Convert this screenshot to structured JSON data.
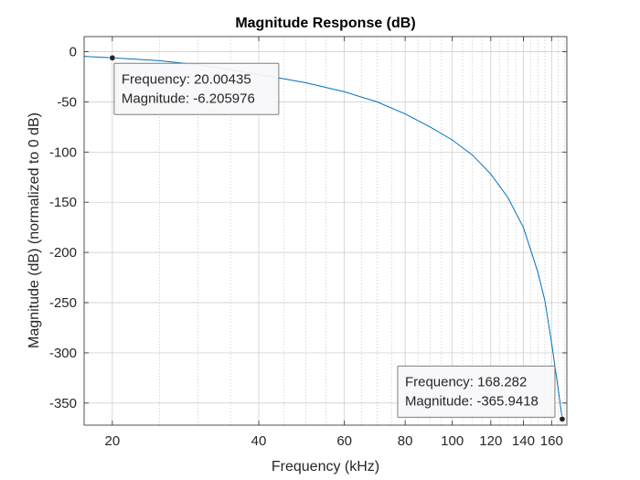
{
  "chart_data": {
    "type": "line",
    "title": "Magnitude Response (dB)",
    "xlabel": "Frequency (kHz)",
    "ylabel": "Magnitude (dB) (normalized to 0 dB)",
    "x_scale": "log",
    "xlim": [
      17.5,
      172
    ],
    "ylim": [
      -372,
      15
    ],
    "x_ticks": [
      20,
      40,
      60,
      80,
      100,
      120,
      140,
      160
    ],
    "x_tick_labels": [
      "20",
      "40",
      "60",
      "80",
      "100",
      "120",
      "140",
      "160"
    ],
    "y_ticks": [
      0,
      -50,
      -100,
      -150,
      -200,
      -250,
      -300,
      -350
    ],
    "y_tick_labels": [
      "0",
      "-50",
      "-100",
      "-150",
      "-200",
      "-250",
      "-300",
      "-350"
    ],
    "grid": true,
    "series": [
      {
        "color": "#0072bd",
        "x": [
          17.5,
          20,
          25,
          30,
          35,
          40,
          45,
          50,
          60,
          70,
          80,
          90,
          100,
          110,
          120,
          130,
          140,
          150,
          155,
          160,
          165,
          168.3
        ],
        "y": [
          -4.7,
          -6.2,
          -9,
          -13,
          -18,
          -23,
          -27,
          -31,
          -40,
          -50,
          -62,
          -75,
          -88,
          -103,
          -122,
          -145,
          -175,
          -220,
          -248,
          -290,
          -335,
          -366
        ]
      }
    ],
    "datatips": [
      {
        "x": 20.00435,
        "y": -6.205976,
        "line1": "Frequency: 20.00435",
        "line2": "Magnitude: -6.205976",
        "placement": "bottom-right"
      },
      {
        "x": 168.282,
        "y": -365.9418,
        "line1": "Frequency: 168.282",
        "line2": "Magnitude: -365.9418",
        "placement": "top-left"
      }
    ]
  }
}
